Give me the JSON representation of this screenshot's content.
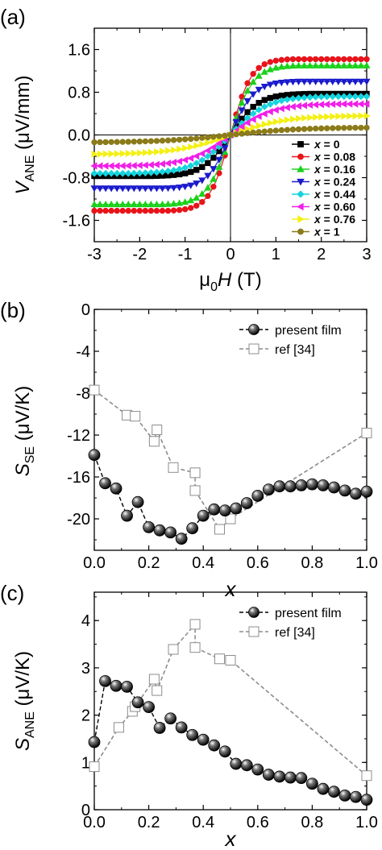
{
  "chart_data": [
    {
      "panel": "(a)",
      "type": "line",
      "ylabel": {
        "main": "V",
        "sub": "ANE",
        "unit": " (μV/mm)"
      },
      "xlabel": {
        "pre": "μ",
        "sub": "0",
        "italic": "H",
        "unit": " (T)"
      },
      "xlim": [
        -3,
        3
      ],
      "ylim": [
        -2.0,
        2.0
      ],
      "xticks": [
        "-3",
        "-2",
        "-1",
        "0",
        "1",
        "2",
        "3"
      ],
      "yticks": [
        "1.6",
        "0.8",
        "0.0",
        "-0.8",
        "-1.6"
      ],
      "ytick_values": [
        1.6,
        0.8,
        0.0,
        -0.8,
        -1.6
      ],
      "legend_position": "bottom-right",
      "series": [
        {
          "name": "x = 0",
          "var": "x",
          "val": "0",
          "color": "#000000",
          "marker": "square",
          "saturation": 0.77,
          "field_scale": 0.6,
          "x": [
            -3,
            -2.5,
            -2,
            -1.5,
            -1,
            -0.7,
            -0.5,
            -0.3,
            -0.1,
            0,
            0.1,
            0.3,
            0.5,
            0.7,
            1,
            1.5,
            2,
            2.5,
            3
          ],
          "y": [
            -0.78,
            -0.77,
            -0.77,
            -0.76,
            -0.7,
            -0.6,
            -0.48,
            -0.32,
            -0.12,
            0.0,
            0.12,
            0.32,
            0.48,
            0.6,
            0.7,
            0.75,
            0.77,
            0.77,
            0.78
          ]
        },
        {
          "name": "x = 0.08",
          "var": "x",
          "val": "0.08",
          "color": "#e8141b",
          "marker": "circle",
          "saturation": 1.42,
          "field_scale": 0.45,
          "x": [
            -3,
            -2.5,
            -2,
            -1.5,
            -1,
            -0.7,
            -0.5,
            -0.3,
            -0.1,
            0,
            0.1,
            0.3,
            0.5,
            0.7,
            1,
            1.5,
            2,
            2.5,
            3
          ],
          "y": [
            -1.42,
            -1.41,
            -1.41,
            -1.39,
            -1.3,
            -1.1,
            -0.85,
            -0.55,
            -0.2,
            0.0,
            0.2,
            0.55,
            0.85,
            1.1,
            1.38,
            1.4,
            1.41,
            1.41,
            1.42
          ]
        },
        {
          "name": "x = 0.16",
          "var": "x",
          "val": "0.16",
          "color": "#1bd11b",
          "marker": "triangle-up",
          "saturation": 1.3,
          "field_scale": 0.5,
          "x": [
            -3,
            -2.5,
            -2,
            -1.5,
            -1,
            -0.7,
            -0.5,
            -0.3,
            -0.1,
            0,
            0.1,
            0.3,
            0.5,
            0.7,
            1,
            1.5,
            2,
            2.5,
            3
          ],
          "y": [
            -1.3,
            -1.29,
            -1.29,
            -1.27,
            -1.2,
            -1.02,
            -0.8,
            -0.5,
            -0.18,
            0.0,
            0.18,
            0.5,
            0.8,
            1.02,
            1.25,
            1.28,
            1.29,
            1.3,
            1.3
          ]
        },
        {
          "name": "x = 0.24",
          "var": "x",
          "val": "0.24",
          "color": "#1a1acd",
          "marker": "triangle-down",
          "saturation": 1.0,
          "field_scale": 0.5,
          "x": [
            -3,
            -2.5,
            -2,
            -1.5,
            -1,
            -0.7,
            -0.5,
            -0.3,
            -0.1,
            0,
            0.1,
            0.3,
            0.5,
            0.7,
            1,
            1.5,
            2,
            2.5,
            3
          ],
          "y": [
            -1.0,
            -0.99,
            -0.98,
            -0.96,
            -0.9,
            -0.78,
            -0.62,
            -0.4,
            -0.14,
            0.0,
            0.14,
            0.4,
            0.62,
            0.78,
            0.92,
            0.97,
            0.99,
            1.0,
            1.0
          ]
        },
        {
          "name": "x = 0.44",
          "var": "x",
          "val": "0.44",
          "color": "#15d4dd",
          "marker": "diamond",
          "saturation": 0.72,
          "field_scale": 0.8,
          "x": [
            -3,
            -2.5,
            -2,
            -1.5,
            -1,
            -0.7,
            -0.5,
            -0.3,
            -0.1,
            0,
            0.1,
            0.3,
            0.5,
            0.7,
            1,
            1.5,
            2,
            2.5,
            3
          ],
          "y": [
            -0.72,
            -0.71,
            -0.7,
            -0.66,
            -0.58,
            -0.48,
            -0.38,
            -0.25,
            -0.09,
            0.0,
            0.09,
            0.25,
            0.38,
            0.48,
            0.58,
            0.66,
            0.7,
            0.71,
            0.72
          ]
        },
        {
          "name": "x = 0.60",
          "var": "x",
          "val": "0.60",
          "color": "#f020e8",
          "marker": "triangle-left",
          "saturation": 0.58,
          "field_scale": 0.9,
          "x": [
            -3,
            -2.5,
            -2,
            -1.5,
            -1,
            -0.7,
            -0.5,
            -0.3,
            -0.1,
            0,
            0.1,
            0.3,
            0.5,
            0.7,
            1,
            1.5,
            2,
            2.5,
            3
          ],
          "y": [
            -0.58,
            -0.57,
            -0.56,
            -0.52,
            -0.45,
            -0.37,
            -0.29,
            -0.19,
            -0.07,
            0.0,
            0.07,
            0.19,
            0.29,
            0.37,
            0.45,
            0.52,
            0.56,
            0.57,
            0.58
          ]
        },
        {
          "name": "x = 0.76",
          "var": "x",
          "val": "0.76",
          "color": "#f4f014",
          "marker": "triangle-right",
          "saturation": 0.36,
          "field_scale": 1.2,
          "x": [
            -3,
            -2.5,
            -2,
            -1.5,
            -1,
            -0.7,
            -0.5,
            -0.3,
            -0.1,
            0,
            0.1,
            0.3,
            0.5,
            0.7,
            1,
            1.5,
            2,
            2.5,
            3
          ],
          "y": [
            -0.36,
            -0.35,
            -0.33,
            -0.3,
            -0.25,
            -0.2,
            -0.16,
            -0.1,
            -0.04,
            0.0,
            0.04,
            0.1,
            0.16,
            0.2,
            0.25,
            0.3,
            0.33,
            0.35,
            0.36
          ]
        },
        {
          "name": "x = 1",
          "var": "x",
          "val": "1",
          "color": "#8b7b1a",
          "marker": "circle",
          "saturation": 0.14,
          "field_scale": 1.5,
          "x": [
            -3,
            -2.5,
            -2,
            -1.5,
            -1,
            -0.7,
            -0.5,
            -0.3,
            -0.1,
            0,
            0.1,
            0.3,
            0.5,
            0.7,
            1,
            1.5,
            2,
            2.5,
            3
          ],
          "y": [
            -0.14,
            -0.13,
            -0.12,
            -0.11,
            -0.09,
            -0.07,
            -0.05,
            -0.03,
            -0.01,
            0.0,
            0.01,
            0.03,
            0.05,
            0.07,
            0.09,
            0.11,
            0.12,
            0.13,
            0.14
          ]
        }
      ]
    },
    {
      "panel": "(b)",
      "type": "line",
      "ylabel": {
        "main": "S",
        "sub": "SE",
        "unit": " (μV/K)"
      },
      "xlabel": "x",
      "xlim": [
        0,
        1.0
      ],
      "ylim": [
        -23,
        0
      ],
      "xticks": [
        "0.0",
        "0.2",
        "0.4",
        "0.6",
        "0.8",
        "1.0"
      ],
      "xtick_values": [
        0,
        0.2,
        0.4,
        0.6,
        0.8,
        1.0
      ],
      "yticks": [
        "0",
        "-4",
        "-8",
        "-12",
        "-16",
        "-20"
      ],
      "ytick_values": [
        0,
        -4,
        -8,
        -12,
        -16,
        -20
      ],
      "legend_position": "top-right",
      "series": [
        {
          "name": "present film",
          "style": "filled-sphere",
          "color": "#000000",
          "x": [
            0.0,
            0.04,
            0.08,
            0.12,
            0.16,
            0.2,
            0.24,
            0.28,
            0.32,
            0.36,
            0.4,
            0.44,
            0.48,
            0.52,
            0.56,
            0.6,
            0.64,
            0.68,
            0.72,
            0.76,
            0.8,
            0.84,
            0.88,
            0.92,
            0.96,
            1.0
          ],
          "y": [
            -13.9,
            -16.6,
            -17.1,
            -19.7,
            -18.4,
            -20.8,
            -21.1,
            -21.3,
            -21.9,
            -20.9,
            -19.7,
            -19.1,
            -19.2,
            -19.0,
            -18.5,
            -17.8,
            -17.2,
            -16.9,
            -16.9,
            -16.8,
            -16.7,
            -16.8,
            -17.0,
            -17.3,
            -17.6,
            -17.4
          ]
        },
        {
          "name": "ref [34]",
          "style": "open-square",
          "color": "#8c8c8c",
          "x": [
            0.0,
            0.12,
            0.15,
            0.22,
            0.23,
            0.29,
            0.37,
            0.37,
            0.46,
            0.5,
            1.0
          ],
          "y": [
            -7.7,
            -10.1,
            -10.2,
            -12.6,
            -11.5,
            -15.1,
            -15.6,
            -17.3,
            -21.0,
            -20.0,
            -11.8
          ]
        }
      ]
    },
    {
      "panel": "(c)",
      "type": "line",
      "ylabel": {
        "main": "S",
        "sub": "ANE",
        "unit": " (μV/K)"
      },
      "xlabel": "x",
      "xlim": [
        0,
        1.0
      ],
      "ylim": [
        0,
        4.6
      ],
      "xticks": [
        "0.0",
        "0.2",
        "0.4",
        "0.6",
        "0.8",
        "1.0"
      ],
      "xtick_values": [
        0,
        0.2,
        0.4,
        0.6,
        0.8,
        1.0
      ],
      "yticks": [
        "0",
        "1",
        "2",
        "3",
        "4"
      ],
      "ytick_values": [
        0,
        1,
        2,
        3,
        4
      ],
      "legend_position": "top-right",
      "series": [
        {
          "name": "present film",
          "style": "filled-sphere",
          "color": "#000000",
          "x": [
            0.0,
            0.04,
            0.08,
            0.12,
            0.16,
            0.2,
            0.24,
            0.28,
            0.32,
            0.36,
            0.4,
            0.44,
            0.48,
            0.52,
            0.56,
            0.6,
            0.64,
            0.68,
            0.72,
            0.76,
            0.8,
            0.84,
            0.88,
            0.92,
            0.96,
            1.0
          ],
          "y": [
            1.43,
            2.72,
            2.62,
            2.6,
            2.27,
            2.17,
            1.73,
            1.93,
            1.74,
            1.58,
            1.48,
            1.36,
            1.23,
            0.97,
            0.94,
            0.85,
            0.74,
            0.7,
            0.68,
            0.67,
            0.55,
            0.44,
            0.38,
            0.3,
            0.27,
            0.21
          ]
        },
        {
          "name": "ref [34]",
          "style": "open-square",
          "color": "#8c8c8c",
          "x": [
            0.0,
            0.09,
            0.14,
            0.15,
            0.22,
            0.23,
            0.29,
            0.37,
            0.37,
            0.46,
            0.5,
            1.0
          ],
          "y": [
            0.91,
            1.74,
            2.08,
            2.18,
            2.76,
            2.52,
            3.39,
            3.92,
            3.43,
            3.19,
            3.16,
            0.72
          ]
        }
      ]
    }
  ]
}
